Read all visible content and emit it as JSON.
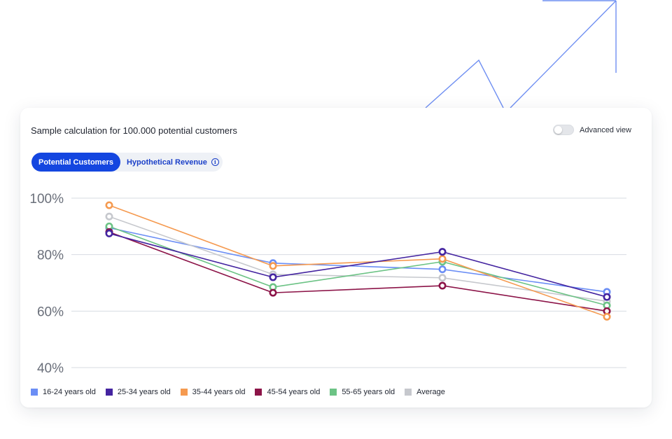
{
  "header": {
    "title": "Sample calculation for 100.000 potential customers",
    "advanced_view_label": "Advanced view",
    "advanced_view_on": false
  },
  "tabs": [
    {
      "label": "Potential Customers",
      "active": true
    },
    {
      "label": "Hypothetical Revenue",
      "active": false,
      "icon": "info-icon"
    }
  ],
  "chart_data": {
    "type": "line",
    "title": "",
    "xlabel": "",
    "ylabel": "",
    "categories": [
      "",
      "",
      "",
      ""
    ],
    "ylim": [
      40,
      100
    ],
    "yticks": [
      100,
      80,
      60,
      40
    ],
    "ytick_labels": [
      "100%",
      "80%",
      "60%",
      "40%"
    ],
    "grid": true,
    "legend_position": "bottom-left",
    "series": [
      {
        "name": "16-24 years old",
        "color": "#6b8ef5",
        "values": [
          89.5,
          77.0,
          74.8,
          66.8
        ]
      },
      {
        "name": "Average",
        "color": "#c6c8cd",
        "values": [
          93.5,
          73.0,
          71.8,
          63.5
        ]
      },
      {
        "name": "55-65 years old",
        "color": "#6cc385",
        "values": [
          90.0,
          68.5,
          77.5,
          62.0
        ]
      },
      {
        "name": "45-54 years old",
        "color": "#8c1448",
        "values": [
          88.0,
          66.5,
          69.0,
          60.0
        ]
      },
      {
        "name": "35-44 years old",
        "color": "#f59a50",
        "values": [
          97.5,
          76.0,
          78.5,
          58.0
        ]
      },
      {
        "name": "25-34 years old",
        "color": "#4424a0",
        "values": [
          87.5,
          72.0,
          81.0,
          65.0
        ]
      }
    ]
  },
  "legend": [
    {
      "label": "16-24 years old",
      "color": "#6b8ef5"
    },
    {
      "label": "25-34 years old",
      "color": "#4424a0"
    },
    {
      "label": "35-44 years old",
      "color": "#f59a50"
    },
    {
      "label": "45-54 years old",
      "color": "#8c1448"
    },
    {
      "label": "55-65 years old",
      "color": "#6cc385"
    },
    {
      "label": "Average",
      "color": "#c6c8cd"
    }
  ]
}
